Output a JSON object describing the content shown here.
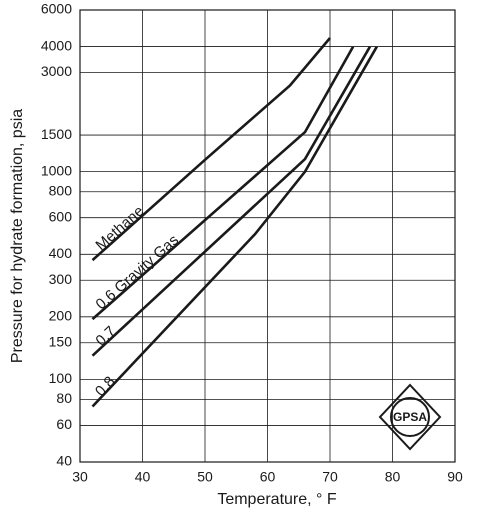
{
  "chart_data": {
    "type": "line",
    "x_label": "Temperature, ° F",
    "y_label": "Pressure for hydrate formation, psia",
    "log_y": true,
    "grid": true,
    "logo": "GPSA",
    "xlim": [
      30,
      90
    ],
    "xticks": [
      30,
      40,
      50,
      60,
      70,
      80,
      90
    ],
    "ylim": [
      40,
      6000
    ],
    "yticks": [
      40,
      60,
      80,
      100,
      150,
      200,
      300,
      400,
      600,
      800,
      1000,
      1500,
      3000,
      4000,
      6000
    ],
    "series": [
      {
        "name": "Methane",
        "color": "#1a1a1a",
        "x": [
          32,
          50,
          63.6,
          70
        ],
        "values": [
          375,
          1140,
          2600,
          4400
        ]
      },
      {
        "name": "0.6 Gravity Gas",
        "color": "#1a1a1a",
        "x": [
          32,
          66,
          73.7
        ],
        "values": [
          195,
          1550,
          4000
        ]
      },
      {
        "name": "0.7",
        "color": "#1a1a1a",
        "x": [
          32,
          66,
          76.4
        ],
        "values": [
          130,
          1150,
          4000
        ]
      },
      {
        "name": "0.8",
        "color": "#1a1a1a",
        "x": [
          32,
          58,
          66,
          77.5
        ],
        "values": [
          74,
          500,
          1000,
          4000
        ]
      }
    ]
  }
}
